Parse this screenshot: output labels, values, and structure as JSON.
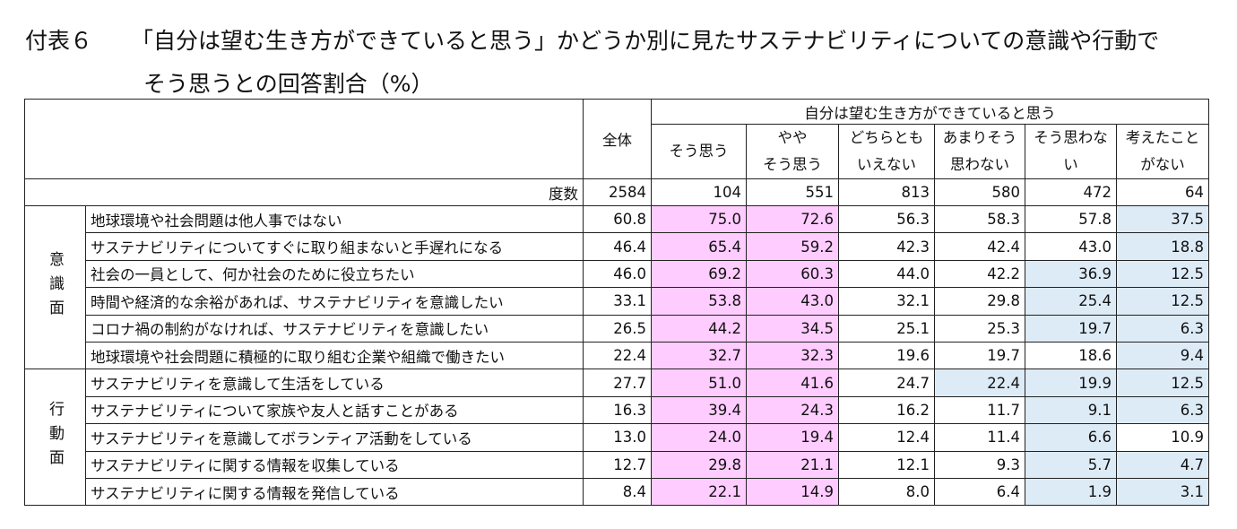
{
  "header": {
    "label": "付表６",
    "title_lines": [
      "「自分は望む生き方ができていると思う」かどうか別に見たサステナビリティについての意識や行動で",
      "そう思うとの回答割合（%）"
    ]
  },
  "table": {
    "total_header": "全体",
    "group_header": "自分は望む生き方ができていると思う",
    "columns": [
      [
        "そう思う"
      ],
      [
        "やや",
        "そう思う"
      ],
      [
        "どちらとも",
        "いえない"
      ],
      [
        "あまりそう",
        "思わない"
      ],
      [
        "そう思わな",
        "い"
      ],
      [
        "考えたこと",
        "がない"
      ]
    ],
    "count_label": "度数",
    "counts": [
      "2584",
      "104",
      "551",
      "813",
      "580",
      "472",
      "64"
    ],
    "sections": [
      {
        "name": "意識面",
        "rows": [
          {
            "label": "地球環境や社会問題は他人事ではない",
            "values": [
              "60.8",
              "75.0",
              "72.6",
              "56.3",
              "58.3",
              "57.8",
              "37.5"
            ],
            "fills": [
              null,
              "#ffccff",
              "#ffccff",
              null,
              null,
              null,
              "#ddebf7"
            ]
          },
          {
            "label": "サステナビリティについてすぐに取り組まないと手遅れになる",
            "values": [
              "46.4",
              "65.4",
              "59.2",
              "42.3",
              "42.4",
              "43.0",
              "18.8"
            ],
            "fills": [
              null,
              "#ffccff",
              "#ffccff",
              null,
              null,
              null,
              "#ddebf7"
            ]
          },
          {
            "label": "社会の一員として、何か社会のために役立ちたい",
            "values": [
              "46.0",
              "69.2",
              "60.3",
              "44.0",
              "42.2",
              "36.9",
              "12.5"
            ],
            "fills": [
              null,
              "#ffccff",
              "#ffccff",
              null,
              null,
              "#ddebf7",
              "#ddebf7"
            ]
          },
          {
            "label": "時間や経済的な余裕があれば、サステナビリティを意識したい",
            "values": [
              "33.1",
              "53.8",
              "43.0",
              "32.1",
              "29.8",
              "25.4",
              "12.5"
            ],
            "fills": [
              null,
              "#ffccff",
              "#ffccff",
              null,
              null,
              "#ddebf7",
              "#ddebf7"
            ]
          },
          {
            "label": "コロナ禍の制約がなければ、サステナビリティを意識したい",
            "values": [
              "26.5",
              "44.2",
              "34.5",
              "25.1",
              "25.3",
              "19.7",
              "6.3"
            ],
            "fills": [
              null,
              "#ffccff",
              "#ffccff",
              null,
              null,
              "#ddebf7",
              "#ddebf7"
            ]
          },
          {
            "label": "地球環境や社会問題に積極的に取り組む企業や組織で働きたい",
            "values": [
              "22.4",
              "32.7",
              "32.3",
              "19.6",
              "19.7",
              "18.6",
              "9.4"
            ],
            "fills": [
              null,
              "#ffccff",
              "#ffccff",
              null,
              null,
              null,
              "#ddebf7"
            ]
          }
        ]
      },
      {
        "name": "行動面",
        "rows": [
          {
            "label": "サステナビリティを意識して生活をしている",
            "values": [
              "27.7",
              "51.0",
              "41.6",
              "24.7",
              "22.4",
              "19.9",
              "12.5"
            ],
            "fills": [
              null,
              "#ffccff",
              "#ffccff",
              null,
              "#ddebf7",
              "#ddebf7",
              "#ddebf7"
            ]
          },
          {
            "label": "サステナビリティについて家族や友人と話すことがある",
            "values": [
              "16.3",
              "39.4",
              "24.3",
              "16.2",
              "11.7",
              "9.1",
              "6.3"
            ],
            "fills": [
              null,
              "#ffccff",
              "#ffccff",
              null,
              null,
              "#ddebf7",
              "#ddebf7"
            ]
          },
          {
            "label": "サステナビリティを意識してボランティア活動をしている",
            "values": [
              "13.0",
              "24.0",
              "19.4",
              "12.4",
              "11.4",
              "6.6",
              "10.9"
            ],
            "fills": [
              null,
              "#ffccff",
              "#ffccff",
              null,
              null,
              "#ddebf7",
              null
            ]
          },
          {
            "label": "サステナビリティに関する情報を収集している",
            "values": [
              "12.7",
              "29.8",
              "21.1",
              "12.1",
              "9.3",
              "5.7",
              "4.7"
            ],
            "fills": [
              null,
              "#ffccff",
              "#ffccff",
              null,
              null,
              "#ddebf7",
              "#ddebf7"
            ]
          },
          {
            "label": "サステナビリティに関する情報を発信している",
            "values": [
              "8.4",
              "22.1",
              "14.9",
              "8.0",
              "6.4",
              "1.9",
              "3.1"
            ],
            "fills": [
              null,
              "#ffccff",
              "#ffccff",
              null,
              null,
              "#ddebf7",
              "#ddebf7"
            ]
          }
        ]
      }
    ]
  }
}
